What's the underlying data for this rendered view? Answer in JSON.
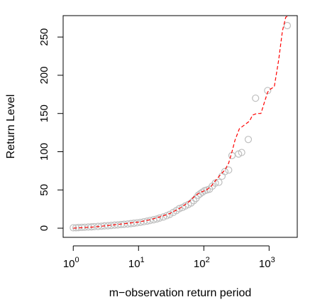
{
  "chart_data": {
    "type": "scatter",
    "title": "",
    "xlabel": "m−observation return period",
    "ylabel": "Return Level",
    "x_scale": "log10",
    "xlim": [
      0.7,
      2700
    ],
    "ylim": [
      -12,
      278
    ],
    "x_ticks": [
      {
        "value": 1,
        "base": "10",
        "exp": "0"
      },
      {
        "value": 10,
        "base": "10",
        "exp": "1"
      },
      {
        "value": 100,
        "base": "10",
        "exp": "2"
      },
      {
        "value": 1000,
        "base": "10",
        "exp": "3"
      }
    ],
    "y_ticks": [
      0,
      50,
      100,
      150,
      200,
      250
    ],
    "grid": false,
    "legend": null,
    "colors": {
      "points": "#bebebe",
      "curve": "#ff0000",
      "axis": "#000000"
    },
    "series": [
      {
        "kind": "points",
        "marker": "open-circle",
        "x": [
          1.0,
          1.1,
          1.2,
          1.35,
          1.5,
          1.7,
          1.9,
          2.1,
          2.4,
          2.7,
          3.0,
          3.4,
          3.8,
          4.3,
          4.8,
          5.4,
          6.0,
          6.8,
          7.6,
          8.5,
          9.5,
          10.7,
          12.0,
          13.5,
          15.0,
          17.0,
          19.0,
          21.0,
          24.0,
          27.0,
          30.0,
          34.0,
          38.0,
          42.0,
          47.0,
          52.0,
          58.0,
          64.0,
          70.0,
          76.0,
          82.0,
          88.0,
          95.0,
          103.0,
          112.0,
          122.0,
          135.0,
          150.0,
          170.0,
          190.0,
          210.0,
          240.0,
          270.0,
          340.0,
          380.0,
          480.0,
          620.0,
          950.0,
          1900.0
        ],
        "y": [
          0.5,
          0.5,
          0.8,
          1.0,
          1.2,
          1.5,
          1.7,
          2.0,
          2.3,
          2.6,
          3.0,
          3.2,
          3.6,
          4.0,
          4.3,
          4.7,
          5.1,
          5.5,
          6.0,
          6.5,
          7.0,
          7.6,
          8.4,
          9.2,
          10.0,
          11.0,
          12.0,
          13.2,
          14.6,
          16.3,
          18.0,
          20.5,
          23.0,
          25.5,
          27.0,
          29.0,
          31.0,
          33.0,
          36.0,
          39.0,
          43.0,
          45.0,
          47.0,
          49.0,
          50.0,
          51.0,
          55.0,
          59.0,
          60.0,
          68.0,
          74.0,
          76.0,
          95.0,
          97.0,
          99.0,
          116.0,
          170.0,
          180.0,
          265.0
        ]
      },
      {
        "kind": "line",
        "style": "dashed",
        "x": [
          1.0,
          2.0,
          3.0,
          5.0,
          7.0,
          10.0,
          15.0,
          20.0,
          30.0,
          45.0,
          60.0,
          75.0,
          90.0,
          110.0,
          130.0,
          150.0,
          180.0,
          210.0,
          240.0,
          270.0,
          300.0,
          350.0,
          420.0,
          500.0,
          560.0,
          650.0,
          750.0,
          850.0,
          950.0,
          1050.0,
          1200.0,
          1400.0,
          1600.0,
          1800.0,
          2000.0
        ],
        "y": [
          0,
          1.5,
          3,
          5,
          6.5,
          8,
          11,
          14,
          19,
          27,
          35,
          43,
          47,
          50,
          55,
          62,
          70,
          76,
          85,
          100,
          115,
          130,
          135,
          140,
          148,
          150,
          150,
          165,
          178,
          182,
          185,
          220,
          258,
          276,
          278
        ]
      }
    ]
  }
}
